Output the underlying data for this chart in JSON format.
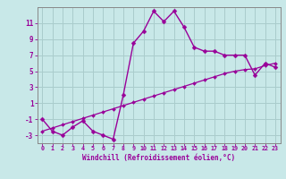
{
  "xlabel": "Windchill (Refroidissement éolien,°C)",
  "bg_color": "#c8e8e8",
  "line_color": "#990099",
  "grid_color": "#aacccc",
  "x_values": [
    0,
    1,
    2,
    3,
    4,
    5,
    6,
    7,
    8,
    9,
    10,
    11,
    12,
    13,
    14,
    15,
    16,
    17,
    18,
    19,
    20,
    21,
    22,
    23
  ],
  "y_curve": [
    -1,
    -2.5,
    -3,
    -2,
    -1.2,
    -2.5,
    -3,
    -3.5,
    2.0,
    8.5,
    10.0,
    12.5,
    11.2,
    12.5,
    10.5,
    8.0,
    7.5,
    7.5,
    7.0,
    7.0,
    7.0,
    4.5,
    6.0,
    5.5
  ],
  "y_linear": [
    -2.5,
    -2.1,
    -1.7,
    -1.3,
    -0.9,
    -0.5,
    -0.1,
    0.3,
    0.7,
    1.1,
    1.5,
    1.9,
    2.3,
    2.7,
    3.1,
    3.5,
    3.9,
    4.3,
    4.7,
    5.0,
    5.2,
    5.3,
    5.7,
    6.0
  ],
  "ylim": [
    -4,
    13
  ],
  "xlim": [
    -0.5,
    23.5
  ],
  "yticks": [
    -3,
    -1,
    1,
    3,
    5,
    7,
    9,
    11
  ],
  "xticks": [
    0,
    1,
    2,
    3,
    4,
    5,
    6,
    7,
    8,
    9,
    10,
    11,
    12,
    13,
    14,
    15,
    16,
    17,
    18,
    19,
    20,
    21,
    22,
    23
  ],
  "spine_color": "#888888",
  "marker": "D",
  "markersize_curve": 2.5,
  "markersize_linear": 2.0,
  "linewidth_curve": 1.0,
  "linewidth_linear": 0.9
}
